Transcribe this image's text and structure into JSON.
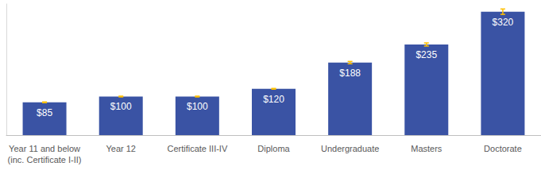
{
  "chart_data": {
    "type": "bar",
    "categories": [
      "Year 11 and below\n(inc. Certificate I-II)",
      "Year 12",
      "Certificate III-IV",
      "Diploma",
      "Undergraduate",
      "Masters",
      "Doctorate"
    ],
    "values": [
      85,
      100,
      100,
      120,
      188,
      235,
      320
    ],
    "value_labels": [
      "$85",
      "$100",
      "$100",
      "$120",
      "$188",
      "$235",
      "$320"
    ],
    "errors": [
      1,
      1,
      1,
      1,
      3,
      4,
      7
    ],
    "error_color": "#ffc000",
    "color": "#3a53a4",
    "ylim": [
      0,
      340
    ],
    "data_labels": true,
    "tick_labels": "x",
    "grid": false
  }
}
